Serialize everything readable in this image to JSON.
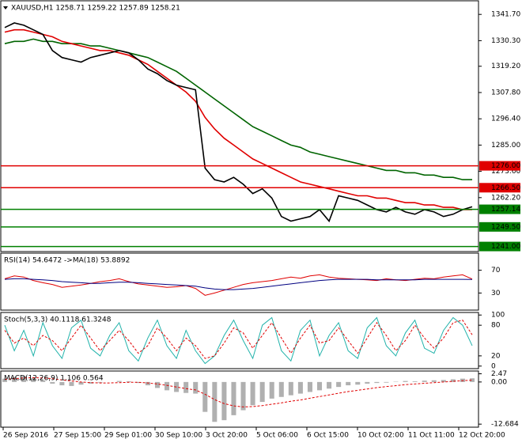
{
  "chart_data": [
    {
      "type": "line",
      "title": "XAUUSD,H1  1258.71 1259.22 1257.89 1258.21",
      "ylim": [
        1238.8,
        1347.6
      ],
      "yticks": [
        {
          "value": 1341.7,
          "label": "1341.70"
        },
        {
          "value": 1330.3,
          "label": "1330.30"
        },
        {
          "value": 1319.2,
          "label": "1319.20"
        },
        {
          "value": 1307.8,
          "label": "1307.80"
        },
        {
          "value": 1296.4,
          "label": "1296.40"
        },
        {
          "value": 1285,
          "label": "1285.00"
        },
        {
          "value": 1273.6,
          "label": "1273.60"
        },
        {
          "value": 1262.2,
          "label": "1262.20"
        }
      ],
      "series": [
        {
          "color": "#006400",
          "values": [
            1329,
            1330,
            1330,
            1331,
            1330,
            1330,
            1329,
            1329,
            1329,
            1328,
            1328,
            1327,
            1326,
            1325,
            1324,
            1323,
            1321,
            1319,
            1317,
            1314,
            1311,
            1308,
            1305,
            1302,
            1299,
            1296,
            1293,
            1291,
            1289,
            1287,
            1285,
            1284,
            1282,
            1281,
            1280,
            1279,
            1278,
            1277,
            1276,
            1275,
            1274,
            1274,
            1273,
            1273,
            1272,
            1272,
            1271,
            1271,
            1270,
            1270
          ]
        },
        {
          "color": "#e00000",
          "values": [
            1334,
            1335,
            1335,
            1334,
            1333,
            1332,
            1330,
            1329,
            1328,
            1327,
            1326,
            1326,
            1325,
            1324,
            1322,
            1320,
            1317,
            1314,
            1311,
            1308,
            1304,
            1297,
            1292,
            1288,
            1285,
            1282,
            1279,
            1277,
            1275,
            1273,
            1271,
            1269,
            1268,
            1267,
            1266,
            1265,
            1264,
            1263,
            1263,
            1262,
            1262,
            1261,
            1260,
            1260,
            1259,
            1259,
            1258,
            1258,
            1257,
            1257
          ]
        },
        {
          "color": "#000000",
          "values": [
            1336,
            1338,
            1337,
            1335,
            1333,
            1326,
            1323,
            1322,
            1321,
            1323,
            1324,
            1325,
            1326,
            1325,
            1322,
            1318,
            1316,
            1313,
            1311,
            1310,
            1309,
            1275,
            1270,
            1269,
            1271,
            1268,
            1264,
            1266,
            1262,
            1254,
            1252,
            1253,
            1254,
            1257,
            1252,
            1263,
            1262,
            1261,
            1259,
            1257,
            1256,
            1258,
            1256,
            1255,
            1257,
            1256,
            1254,
            1255,
            1257,
            1258.21
          ]
        }
      ],
      "levels": [
        {
          "value": 1276,
          "label": "1276.00",
          "color": "#e00000"
        },
        {
          "value": 1266.5,
          "label": "1266.50",
          "color": "#e00000"
        },
        {
          "value": 1257.14,
          "label": "1257.14",
          "color": "#008000"
        },
        {
          "value": 1249.5,
          "label": "1249.50",
          "color": "#008000"
        },
        {
          "value": 1241,
          "label": "1241.00",
          "color": "#008000"
        }
      ]
    },
    {
      "type": "line",
      "title": "RSI(14) 54.6472 ->MA(18) 53.8892",
      "ylim": [
        0,
        100
      ],
      "yticks": [
        70,
        30
      ],
      "series": [
        {
          "color": "#e00000",
          "values": [
            55,
            60,
            58,
            52,
            48,
            45,
            40,
            42,
            44,
            47,
            50,
            52,
            55,
            50,
            46,
            44,
            42,
            40,
            41,
            43,
            38,
            26,
            30,
            35,
            40,
            45,
            48,
            50,
            52,
            55,
            58,
            56,
            60,
            62,
            58,
            56,
            55,
            54,
            53,
            52,
            55,
            53,
            52,
            54,
            56,
            55,
            58,
            60,
            62,
            54.6472
          ]
        },
        {
          "color": "#000080",
          "values": [
            54,
            55,
            55,
            54,
            53,
            52,
            50,
            49,
            48,
            47,
            47,
            48,
            49,
            49,
            48,
            47,
            46,
            45,
            44,
            43,
            42,
            39,
            37,
            36,
            36,
            37,
            38,
            40,
            42,
            44,
            46,
            48,
            50,
            52,
            53,
            54,
            54,
            54,
            54,
            53,
            53,
            53,
            53,
            53,
            54,
            54,
            54,
            54,
            54,
            53.8892
          ]
        }
      ]
    },
    {
      "type": "line",
      "title": "Stoch(5,3,3) 40.1118 61.3248",
      "ylim": [
        -5,
        105
      ],
      "yticks": [
        100,
        80,
        20,
        0
      ],
      "series": [
        {
          "color": "#20b2aa",
          "values": [
            80,
            30,
            70,
            20,
            85,
            40,
            15,
            75,
            90,
            35,
            20,
            60,
            85,
            30,
            10,
            55,
            90,
            40,
            15,
            70,
            30,
            5,
            20,
            60,
            90,
            50,
            15,
            80,
            95,
            30,
            10,
            70,
            90,
            20,
            60,
            85,
            30,
            15,
            75,
            95,
            40,
            20,
            65,
            90,
            35,
            25,
            70,
            95,
            80,
            40.1118
          ]
        },
        {
          "color": "#e00000",
          "dash": true,
          "values": [
            70,
            45,
            55,
            40,
            60,
            50,
            30,
            55,
            80,
            55,
            30,
            50,
            70,
            50,
            25,
            40,
            75,
            55,
            30,
            55,
            40,
            15,
            20,
            45,
            75,
            65,
            35,
            60,
            85,
            55,
            25,
            55,
            80,
            45,
            50,
            75,
            50,
            25,
            55,
            85,
            60,
            30,
            50,
            80,
            55,
            35,
            55,
            85,
            90,
            61.3248
          ]
        }
      ]
    },
    {
      "type": "bar",
      "title": "MACD(12,26,9) 1.106 0.564",
      "ylim": [
        -13.6,
        3.3
      ],
      "yticks": [
        {
          "value": 2.47,
          "label": "2.47"
        },
        {
          "value": 0,
          "label": "0.00"
        },
        -12.684
      ],
      "color": "#b0b0b0",
      "values": [
        1,
        1.5,
        1.8,
        1.2,
        0.5,
        -0.5,
        -1,
        -1.2,
        -0.8,
        -0.5,
        -0.2,
        0,
        0.3,
        0.2,
        -0.3,
        -1,
        -1.8,
        -2.5,
        -3,
        -3.3,
        -3.5,
        -9,
        -12,
        -11.5,
        -10,
        -8.5,
        -7,
        -6,
        -5,
        -4.5,
        -4,
        -3.5,
        -3,
        -2.5,
        -2,
        -1.5,
        -1,
        -0.8,
        -0.5,
        -0.3,
        -0.2,
        0.1,
        0.3,
        0.2,
        0.4,
        0.5,
        0.6,
        0.8,
        1,
        1.106
      ],
      "series": [
        {
          "color": "#e00000",
          "dash": true,
          "values": [
            0.8,
            1,
            1.2,
            1.3,
            1.2,
            1,
            0.6,
            0.3,
            0,
            -0.2,
            -0.3,
            -0.3,
            -0.2,
            -0.1,
            -0.1,
            -0.3,
            -0.6,
            -1,
            -1.5,
            -2,
            -2.4,
            -3.7,
            -5.3,
            -6.5,
            -7.2,
            -7.5,
            -7.4,
            -7.1,
            -6.7,
            -6.3,
            -5.8,
            -5.4,
            -4.9,
            -4.4,
            -3.9,
            -3.4,
            -2.9,
            -2.5,
            -2.1,
            -1.7,
            -1.4,
            -1.1,
            -0.8,
            -0.6,
            -0.4,
            -0.2,
            0,
            0.2,
            0.4,
            0.564
          ]
        }
      ]
    }
  ],
  "time_axis": [
    "26 Sep 2016",
    "27 Sep 15:00",
    "29 Sep 01:00",
    "30 Sep 10:00",
    "3 Oct 20:00",
    "5 Oct 06:00",
    "6 Oct 15:00",
    "10 Oct 02:00",
    "11 Oct 11:00",
    "12 Oct 20:00"
  ]
}
